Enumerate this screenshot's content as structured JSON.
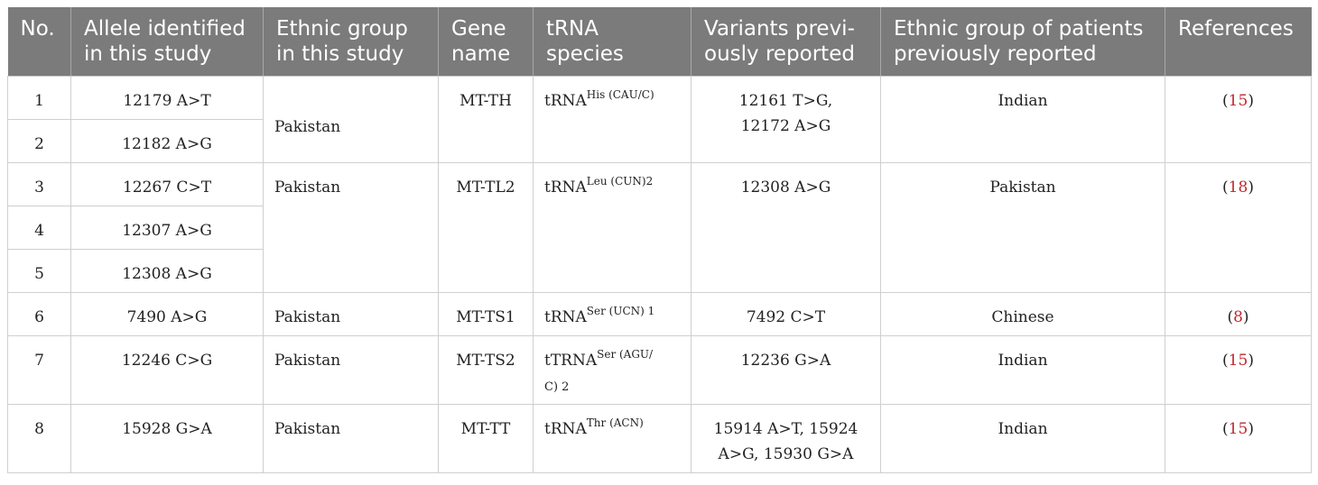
{
  "headers": {
    "no": "No.",
    "allele": "Allele identified in this study",
    "ethnic": "Ethnic group in this study",
    "gene": "Gene name",
    "trna": "tRNA species",
    "variants": "Variants previ-ously reported",
    "patients": "Ethnic group of patients previously reported",
    "refs": "References"
  },
  "rows": [
    {
      "no": "1",
      "allele": "12179 A>T"
    },
    {
      "no": "2",
      "allele": "12182 A>G"
    },
    {
      "no": "3",
      "allele": "12267 C>T"
    },
    {
      "no": "4",
      "allele": "12307 A>G"
    },
    {
      "no": "5",
      "allele": "12308 A>G"
    },
    {
      "no": "6",
      "allele": "7490 A>G"
    },
    {
      "no": "7",
      "allele": "12246 C>G"
    },
    {
      "no": "8",
      "allele": "15928 G>A"
    }
  ],
  "groups": {
    "his": {
      "ethnic": "Pakistan",
      "gene": "MT-TH",
      "trna_base": "tRNA",
      "trna_sup": "His (CAU/C)",
      "variants_line1": "12161 T>G,",
      "variants_line2": "12172 A>G",
      "patients": "Indian",
      "ref": "15"
    },
    "leu": {
      "ethnic": "Pakistan",
      "gene": "MT-TL2",
      "trna_base": "tRNA",
      "trna_sup": "Leu (CUN)2",
      "variants": "12308 A>G",
      "patients": "Pakistan",
      "ref": "18"
    },
    "ser1": {
      "ethnic": "Pakistan",
      "gene": "MT-TS1",
      "trna_base": "tRNA",
      "trna_sup": "Ser (UCN) 1",
      "variants": "7492 C>T",
      "patients": "Chinese",
      "ref": "8"
    },
    "ser2": {
      "ethnic": "Pakistan",
      "gene": "MT-TS2",
      "trna_base": "tTRNA",
      "trna_sup": "Ser (AGU/",
      "trna_line2": "C) 2",
      "variants": "12236 G>A",
      "patients": "Indian",
      "ref": "15"
    },
    "thr": {
      "ethnic": "Pakistan",
      "gene": "MT-TT",
      "trna_base": "tRNA",
      "trna_sup": "Thr (ACN)",
      "variants_line1": "15914 A>T, 15924",
      "variants_line2": "A>G, 15930 G>A",
      "patients": "Indian",
      "ref": "15"
    }
  },
  "ref_open": "(",
  "ref_close": ")"
}
